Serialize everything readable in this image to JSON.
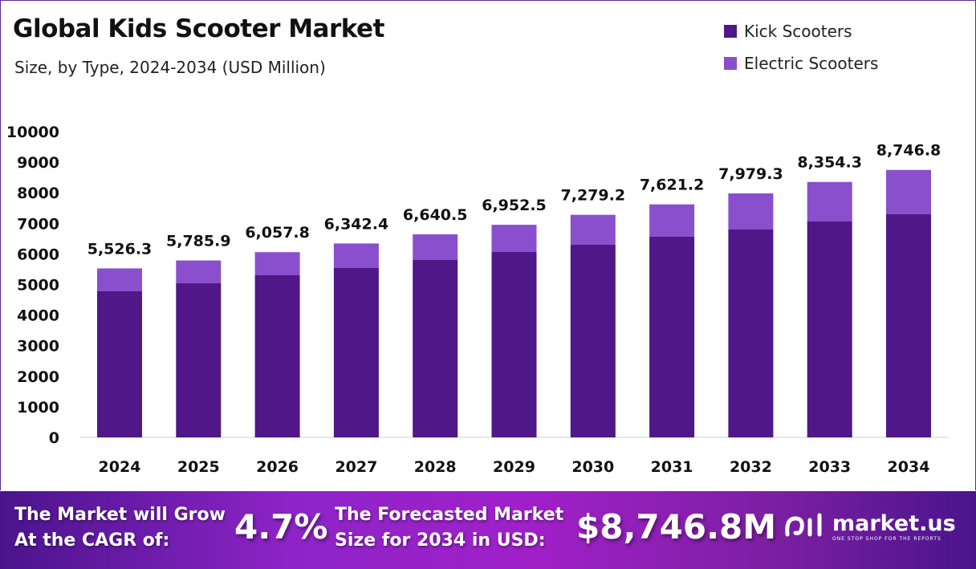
{
  "chart_data": {
    "type": "stacked-bar",
    "title": "Global Kids Scooter Market",
    "subtitle": "Size, by Type, 2024-2034 (USD Million)",
    "categories": [
      "2024",
      "2025",
      "2026",
      "2027",
      "2028",
      "2029",
      "2030",
      "2031",
      "2032",
      "2033",
      "2034"
    ],
    "series": [
      {
        "name": "Kick Scooters",
        "color": "#4f1787",
        "values": [
          4777,
          5039,
          5302,
          5538,
          5800,
          6063,
          6299,
          6562,
          6798,
          7060,
          7297
        ]
      },
      {
        "name": "Electric Scooters",
        "color": "#8a4fcc",
        "values": [
          749.3,
          746.9,
          755.8,
          804.4,
          840.5,
          889.5,
          980.2,
          1059.2,
          1181.3,
          1294.3,
          1449.8
        ]
      }
    ],
    "totals": [
      5526.3,
      5785.9,
      6057.8,
      6342.4,
      6640.5,
      6952.5,
      7279.2,
      7621.2,
      7979.3,
      8354.3,
      8746.8
    ],
    "total_labels": [
      "5,526.3",
      "5,785.9",
      "6,057.8",
      "6,342.4",
      "6,640.5",
      "6,952.5",
      "7,279.2",
      "7,621.2",
      "7,979.3",
      "8,354.3",
      "8,746.8"
    ],
    "ylim": [
      0,
      10000
    ],
    "yticks": [
      0,
      1000,
      2000,
      3000,
      4000,
      5000,
      6000,
      7000,
      8000,
      9000,
      10000
    ],
    "grid": false,
    "legend": "top-right"
  },
  "banner": {
    "cagr_label_1": "The Market will Grow",
    "cagr_label_2": "At the CAGR of:",
    "cagr_value": "4.7%",
    "forecast_label_1": "The Forecasted Market",
    "forecast_label_2": "Size for 2034 in USD:",
    "forecast_value": "$8,746.8M",
    "logo_name": "market.us",
    "logo_tagline": "ONE STOP SHOP FOR THE REPORTS"
  }
}
